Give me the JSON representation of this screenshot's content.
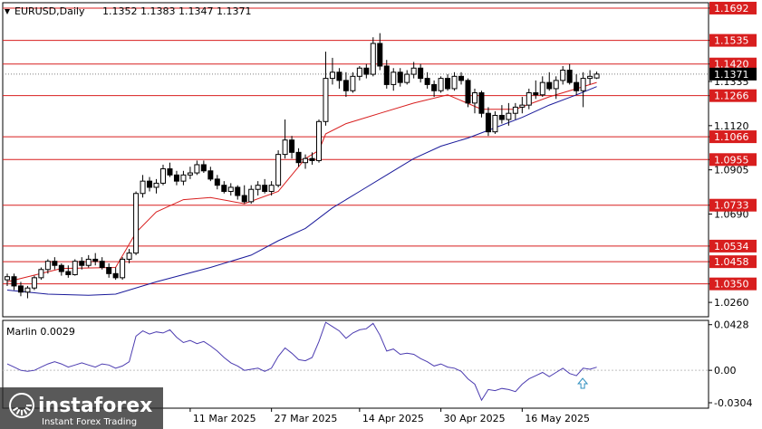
{
  "header": {
    "symbol": "EURUSD,Daily",
    "ohlc": "1.1352 1.1383 1.1347 1.1371"
  },
  "watermark": {
    "brand": "instaforex",
    "tagline": "Instant Forex Trading"
  },
  "colors": {
    "level_line": "#d81e1e",
    "price_tag": "#d81e1e",
    "current_tag": "#000000",
    "fast_ma": "#d81e1e",
    "slow_ma": "#1a1a9a",
    "marlin": "#4b3bb0",
    "arrow": "#2f8fbf",
    "candle_up": "#ffffff",
    "candle_down": "#000000"
  },
  "chart_data": [
    {
      "type": "candlestick",
      "title": "EURUSD,Daily",
      "ylim": [
        1.019,
        1.1705
      ],
      "price_scale_labels": [
        "1.1692",
        "1.1535",
        "1.1420",
        "1.1335",
        "1.1266",
        "1.1120",
        "1.1066",
        "1.0955",
        "1.0905",
        "1.0733",
        "1.0690",
        "1.0534",
        "1.0458",
        "1.0350",
        "1.0260"
      ],
      "red_level_labels": [
        "1.1692",
        "1.1535",
        "1.1420",
        "1.1266",
        "1.1066",
        "1.0955",
        "1.0733",
        "1.0534",
        "1.0458",
        "1.0350"
      ],
      "current_price_label": "1.1371",
      "x_tick_labels": [
        "11 Mar 2025",
        "27 Mar 2025",
        "14 Apr 2025",
        "30 Apr 2025",
        "16 May 2025"
      ],
      "x_tick_indices": [
        27,
        39,
        52,
        64,
        76
      ],
      "ohlc": [
        [
          1.037,
          1.04,
          1.034,
          1.0385
        ],
        [
          1.0385,
          1.04,
          1.032,
          1.034
        ],
        [
          1.034,
          1.036,
          1.029,
          1.031
        ],
        [
          1.031,
          1.034,
          1.028,
          1.033
        ],
        [
          1.033,
          1.039,
          1.032,
          1.038
        ],
        [
          1.038,
          1.043,
          1.037,
          1.042
        ],
        [
          1.042,
          1.047,
          1.04,
          1.046
        ],
        [
          1.046,
          1.048,
          1.042,
          1.044
        ],
        [
          1.044,
          1.045,
          1.039,
          1.041
        ],
        [
          1.041,
          1.044,
          1.038,
          1.0395
        ],
        [
          1.0395,
          1.047,
          1.039,
          1.046
        ],
        [
          1.046,
          1.048,
          1.042,
          1.044
        ],
        [
          1.044,
          1.049,
          1.043,
          1.047
        ],
        [
          1.047,
          1.05,
          1.044,
          1.046
        ],
        [
          1.046,
          1.048,
          1.042,
          1.043
        ],
        [
          1.043,
          1.045,
          1.038,
          1.04
        ],
        [
          1.04,
          1.043,
          1.037,
          1.038
        ],
        [
          1.038,
          1.048,
          1.037,
          1.047
        ],
        [
          1.047,
          1.052,
          1.045,
          1.05
        ],
        [
          1.05,
          1.08,
          1.049,
          1.079
        ],
        [
          1.079,
          1.088,
          1.077,
          1.085
        ],
        [
          1.085,
          1.087,
          1.08,
          1.082
        ],
        [
          1.082,
          1.086,
          1.079,
          1.084
        ],
        [
          1.084,
          1.093,
          1.083,
          1.091
        ],
        [
          1.091,
          1.094,
          1.087,
          1.088
        ],
        [
          1.088,
          1.09,
          1.083,
          1.085
        ],
        [
          1.085,
          1.09,
          1.083,
          1.088
        ],
        [
          1.088,
          1.092,
          1.086,
          1.089
        ],
        [
          1.089,
          1.095,
          1.088,
          1.093
        ],
        [
          1.093,
          1.095,
          1.089,
          1.09
        ],
        [
          1.09,
          1.092,
          1.085,
          1.086
        ],
        [
          1.086,
          1.088,
          1.081,
          1.083
        ],
        [
          1.083,
          1.085,
          1.079,
          1.08
        ],
        [
          1.08,
          1.084,
          1.078,
          1.082
        ],
        [
          1.082,
          1.083,
          1.076,
          1.078
        ],
        [
          1.078,
          1.083,
          1.074,
          1.075
        ],
        [
          1.075,
          1.083,
          1.074,
          1.081
        ],
        [
          1.081,
          1.085,
          1.078,
          1.083
        ],
        [
          1.083,
          1.086,
          1.079,
          1.08
        ],
        [
          1.08,
          1.085,
          1.078,
          1.083
        ],
        [
          1.083,
          1.1,
          1.082,
          1.098
        ],
        [
          1.098,
          1.115,
          1.096,
          1.105
        ],
        [
          1.105,
          1.107,
          1.096,
          1.099
        ],
        [
          1.099,
          1.101,
          1.092,
          1.094
        ],
        [
          1.094,
          1.098,
          1.091,
          1.096
        ],
        [
          1.096,
          1.099,
          1.093,
          1.095
        ],
        [
          1.095,
          1.115,
          1.094,
          1.114
        ],
        [
          1.114,
          1.148,
          1.112,
          1.135
        ],
        [
          1.135,
          1.145,
          1.132,
          1.138
        ],
        [
          1.138,
          1.14,
          1.13,
          1.134
        ],
        [
          1.134,
          1.138,
          1.126,
          1.129
        ],
        [
          1.129,
          1.138,
          1.128,
          1.136
        ],
        [
          1.136,
          1.141,
          1.134,
          1.14
        ],
        [
          1.14,
          1.142,
          1.135,
          1.137
        ],
        [
          1.137,
          1.155,
          1.136,
          1.152
        ],
        [
          1.152,
          1.157,
          1.139,
          1.141
        ],
        [
          1.141,
          1.144,
          1.13,
          1.132
        ],
        [
          1.132,
          1.14,
          1.129,
          1.138
        ],
        [
          1.138,
          1.14,
          1.131,
          1.133
        ],
        [
          1.133,
          1.139,
          1.132,
          1.137
        ],
        [
          1.137,
          1.143,
          1.135,
          1.14
        ],
        [
          1.14,
          1.142,
          1.133,
          1.135
        ],
        [
          1.135,
          1.138,
          1.13,
          1.132
        ],
        [
          1.132,
          1.134,
          1.126,
          1.129
        ],
        [
          1.129,
          1.136,
          1.128,
          1.135
        ],
        [
          1.135,
          1.137,
          1.129,
          1.13
        ],
        [
          1.13,
          1.138,
          1.129,
          1.136
        ],
        [
          1.136,
          1.138,
          1.132,
          1.134
        ],
        [
          1.134,
          1.135,
          1.121,
          1.123
        ],
        [
          1.123,
          1.13,
          1.118,
          1.128
        ],
        [
          1.128,
          1.129,
          1.116,
          1.118
        ],
        [
          1.118,
          1.121,
          1.107,
          1.109
        ],
        [
          1.109,
          1.119,
          1.108,
          1.117
        ],
        [
          1.117,
          1.122,
          1.113,
          1.115
        ],
        [
          1.115,
          1.123,
          1.112,
          1.118
        ],
        [
          1.118,
          1.123,
          1.115,
          1.121
        ],
        [
          1.121,
          1.126,
          1.118,
          1.122
        ],
        [
          1.122,
          1.13,
          1.12,
          1.128
        ],
        [
          1.128,
          1.134,
          1.125,
          1.127
        ],
        [
          1.127,
          1.136,
          1.126,
          1.133
        ],
        [
          1.133,
          1.138,
          1.129,
          1.13
        ],
        [
          1.13,
          1.136,
          1.125,
          1.134
        ],
        [
          1.134,
          1.141,
          1.132,
          1.139
        ],
        [
          1.139,
          1.142,
          1.132,
          1.133
        ],
        [
          1.133,
          1.137,
          1.127,
          1.129
        ],
        [
          1.129,
          1.138,
          1.121,
          1.135
        ],
        [
          1.135,
          1.139,
          1.132,
          1.136
        ],
        [
          1.1352,
          1.1383,
          1.1347,
          1.1371
        ]
      ],
      "ma_fast": [
        [
          0,
          1.036
        ],
        [
          8,
          1.0425
        ],
        [
          16,
          1.043
        ],
        [
          19,
          1.06
        ],
        [
          22,
          1.07
        ],
        [
          26,
          1.076
        ],
        [
          30,
          1.077
        ],
        [
          35,
          1.074
        ],
        [
          40,
          1.08
        ],
        [
          44,
          1.096
        ],
        [
          46,
          1.1
        ],
        [
          47,
          1.108
        ],
        [
          50,
          1.113
        ],
        [
          55,
          1.118
        ],
        [
          60,
          1.123
        ],
        [
          65,
          1.127
        ],
        [
          70,
          1.12
        ],
        [
          75,
          1.12
        ],
        [
          80,
          1.126
        ],
        [
          84,
          1.13
        ],
        [
          87,
          1.133
        ]
      ],
      "ma_slow": [
        [
          0,
          1.032
        ],
        [
          6,
          1.03
        ],
        [
          12,
          1.0295
        ],
        [
          16,
          1.03
        ],
        [
          22,
          1.036
        ],
        [
          30,
          1.043
        ],
        [
          36,
          1.049
        ],
        [
          40,
          1.056
        ],
        [
          44,
          1.062
        ],
        [
          48,
          1.072
        ],
        [
          52,
          1.08
        ],
        [
          56,
          1.088
        ],
        [
          60,
          1.096
        ],
        [
          64,
          1.102
        ],
        [
          68,
          1.106
        ],
        [
          72,
          1.111
        ],
        [
          76,
          1.116
        ],
        [
          80,
          1.122
        ],
        [
          84,
          1.127
        ],
        [
          87,
          1.131
        ]
      ]
    },
    {
      "type": "line",
      "title": "Marlin 0.0029",
      "ylim": [
        -0.0355,
        0.0468
      ],
      "tick_labels": [
        "0.0428",
        "0.00",
        "-0.0304"
      ],
      "tick_values": [
        0.0428,
        0.0,
        -0.0304
      ],
      "series": [
        {
          "values": [
            0.006,
            0.003,
            0.0,
            -0.001,
            0.0,
            0.003,
            0.006,
            0.008,
            0.006,
            0.003,
            0.005,
            0.007,
            0.005,
            0.003,
            0.006,
            0.005,
            0.002,
            0.004,
            0.008,
            0.032,
            0.037,
            0.034,
            0.036,
            0.035,
            0.038,
            0.031,
            0.026,
            0.028,
            0.025,
            0.027,
            0.023,
            0.018,
            0.012,
            0.007,
            0.004,
            0.0,
            0.001,
            0.002,
            -0.001,
            0.002,
            0.013,
            0.021,
            0.016,
            0.01,
            0.009,
            0.012,
            0.027,
            0.045,
            0.041,
            0.037,
            0.03,
            0.035,
            0.038,
            0.039,
            0.044,
            0.033,
            0.018,
            0.02,
            0.015,
            0.016,
            0.015,
            0.011,
            0.008,
            0.004,
            0.006,
            0.003,
            0.002,
            -0.001,
            -0.008,
            -0.013,
            -0.028,
            -0.018,
            -0.019,
            -0.017,
            -0.018,
            -0.02,
            -0.013,
            -0.008,
            -0.005,
            -0.002,
            -0.006,
            -0.002,
            0.002,
            -0.003,
            -0.005,
            0.002,
            0.001,
            0.0029
          ]
        }
      ]
    }
  ]
}
